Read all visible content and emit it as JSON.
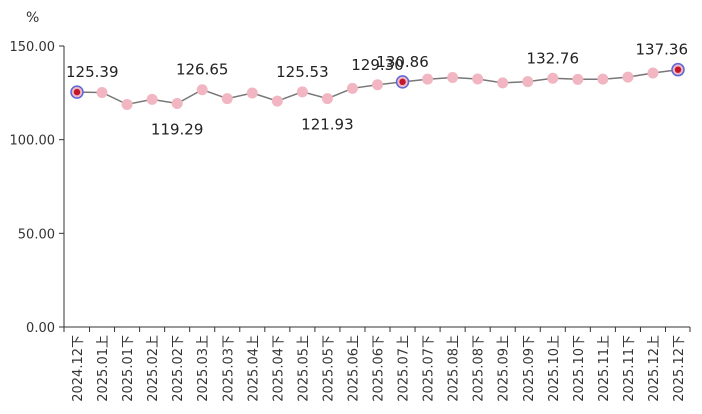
{
  "chart_data": {
    "type": "line",
    "title": "",
    "xlabel": "",
    "ylabel": "%",
    "ylim": [
      0,
      150
    ],
    "yticks": [
      "150.00",
      "100.00",
      "50.00",
      "0.00"
    ],
    "ytick_values": [
      150,
      100,
      50,
      0
    ],
    "grid": false,
    "legend": "none",
    "categories": [
      "2024.12下",
      "2025.01上",
      "2025.01下",
      "2025.02上",
      "2025.02下",
      "2025.03上",
      "2025.03下",
      "2025.04上",
      "2025.04下",
      "2025.05上",
      "2025.05下",
      "2025.06上",
      "2025.06下",
      "2025.07上",
      "2025.07下",
      "2025.08上",
      "2025.08下",
      "2025.09上",
      "2025.09下",
      "2025.10上",
      "2025.10下",
      "2025.11上",
      "2025.11下",
      "2025.12上",
      "2025.12下"
    ],
    "series": [
      {
        "values": [
          125.39,
          125.2,
          118.8,
          121.5,
          119.29,
          126.65,
          121.9,
          124.9,
          120.6,
          125.53,
          121.93,
          127.4,
          129.3,
          130.86,
          132.3,
          133.2,
          132.4,
          130.3,
          131.0,
          132.76,
          132.2,
          132.3,
          133.4,
          135.6,
          137.36
        ],
        "data_labels": [
          {
            "index": 0,
            "text": "125.39"
          },
          {
            "index": 4,
            "text": "119.29"
          },
          {
            "index": 5,
            "text": "126.65"
          },
          {
            "index": 9,
            "text": "125.53"
          },
          {
            "index": 10,
            "text": "121.93"
          },
          {
            "index": 12,
            "text": "129.30"
          },
          {
            "index": 13,
            "text": "130.86"
          },
          {
            "index": 19,
            "text": "132.76"
          },
          {
            "index": 24,
            "text": "137.36"
          }
        ],
        "highlighted_indices": [
          0,
          13,
          24
        ]
      }
    ],
    "colors": {
      "line": "#777777",
      "marker": "#f1b6c2",
      "highlight_fill": "#c0182a",
      "highlight_ring": "#5a68d8",
      "axis": "#333333"
    }
  }
}
